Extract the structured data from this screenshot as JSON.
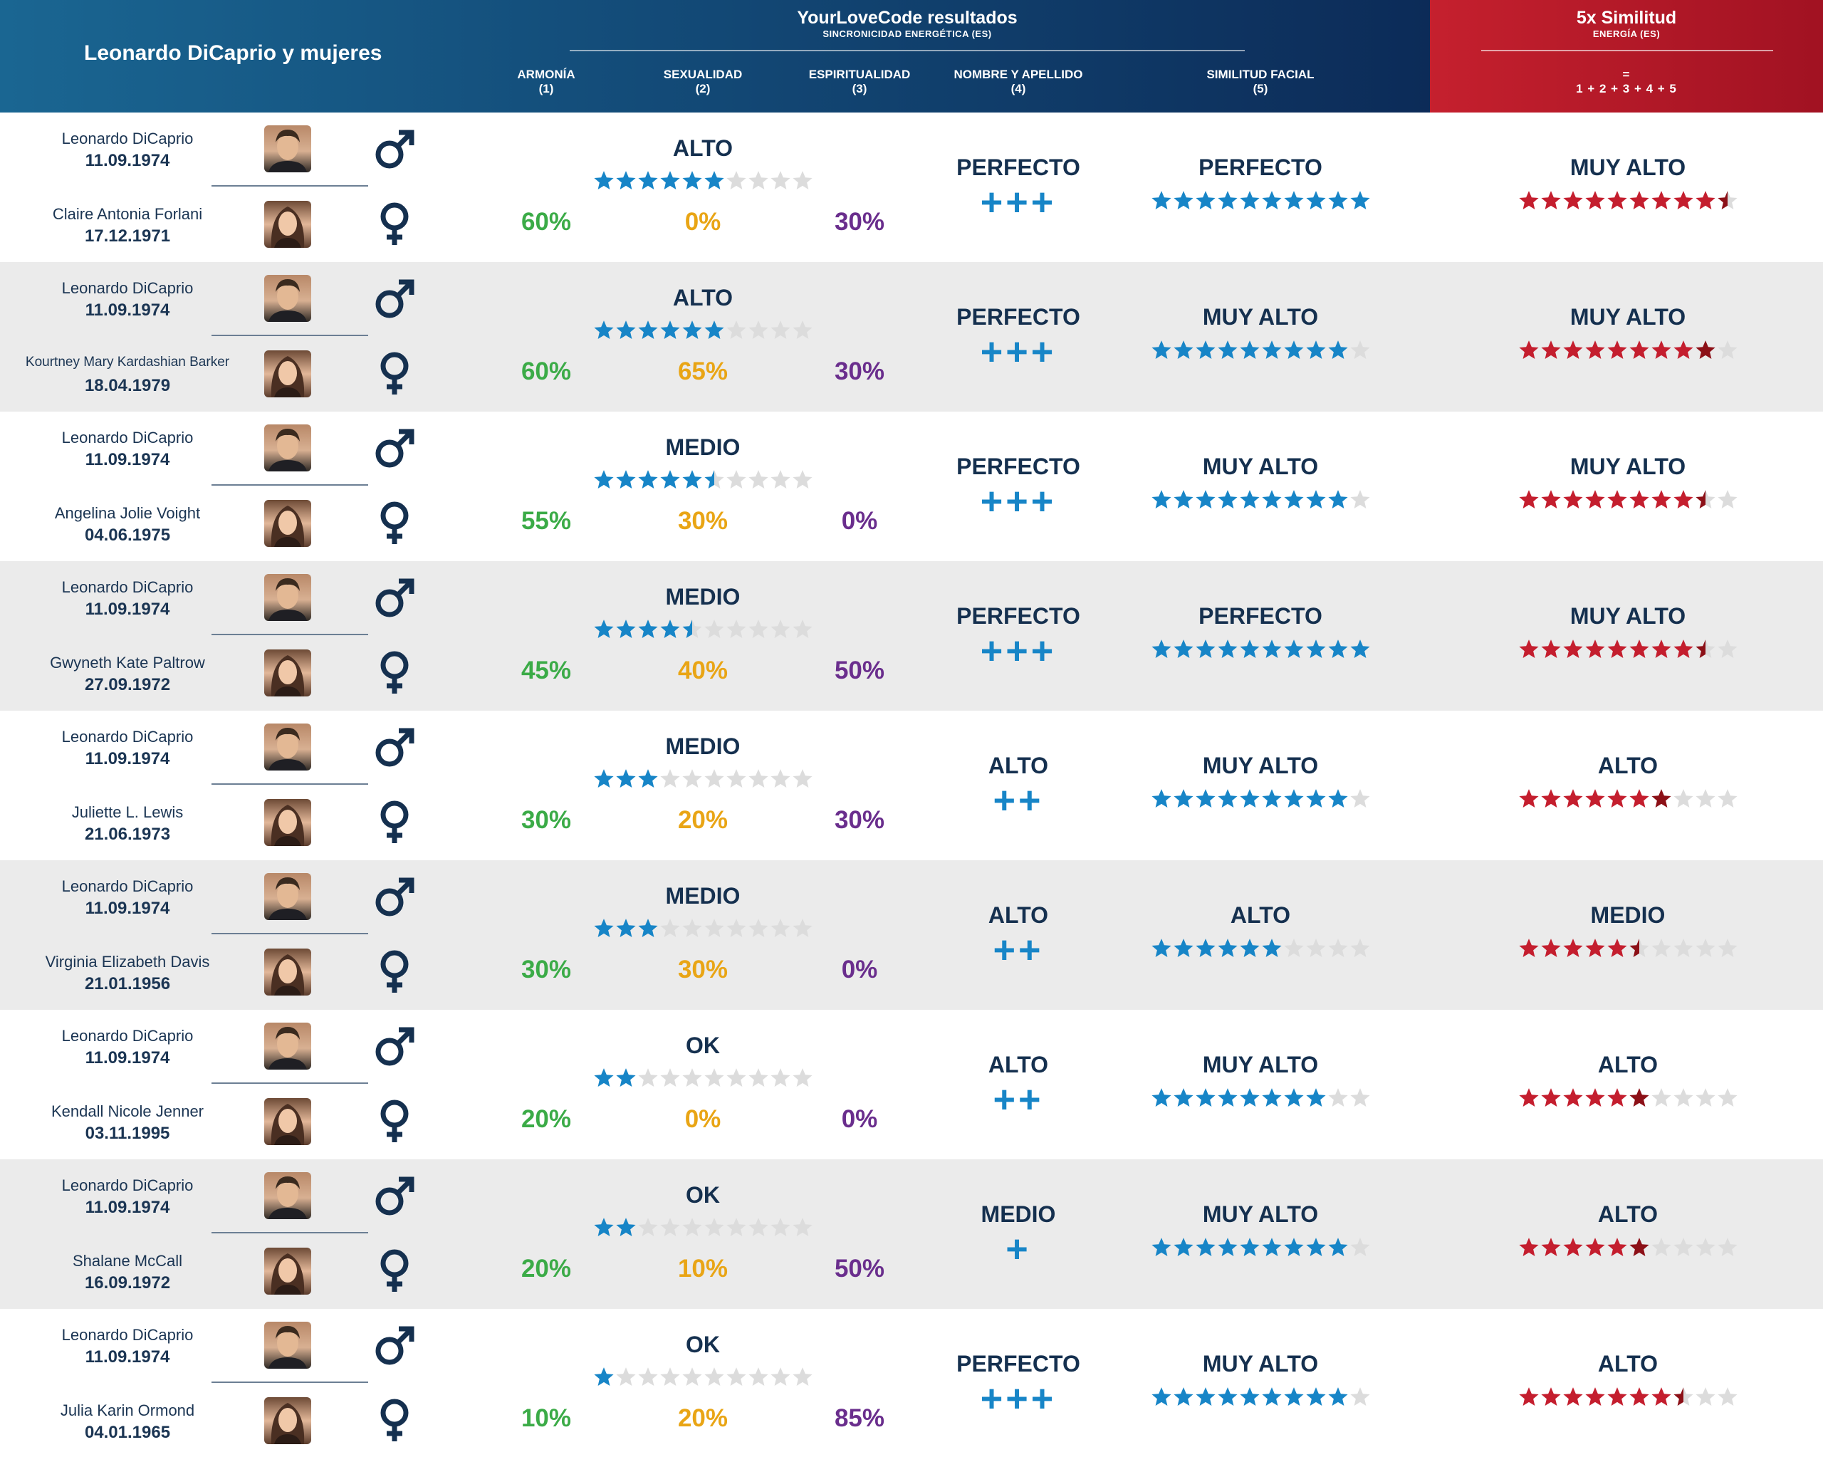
{
  "header": {
    "title": "Leonardo DiCaprio y mujeres",
    "results_title": "YourLoveCode resultados",
    "results_subtitle": "SINCRONICIDAD ENERGÉTICA (ES)",
    "columns": {
      "harmony": {
        "label": "ARMONÍA",
        "num": "(1)"
      },
      "sexuality": {
        "label": "SEXUALIDAD",
        "num": "(2)"
      },
      "spirituality": {
        "label": "ESPIRITUALIDAD",
        "num": "(3)"
      },
      "name": {
        "label": "NOMBRE Y APELLIDO",
        "num": "(4)"
      },
      "facial": {
        "label": "SIMILITUD FACIAL",
        "num": "(5)"
      }
    },
    "similarity_title": "5x Similitud",
    "similarity_subtitle": "ENERGÍA (ES)",
    "formula_eq": "=",
    "formula": "1 + 2 + 3 + 4 + 5"
  },
  "colors": {
    "harmony": "#3bab47",
    "sexuality": "#e9a515",
    "spirituality": "#6a2e8d",
    "star_blue": "#1785c7",
    "star_red": "#c41e2e",
    "star_red_dark": "#8c1017",
    "star_empty": "#dcdcdc"
  },
  "icons": {
    "male": "male-symbol-icon",
    "female": "female-symbol-icon",
    "star": "star-icon",
    "plus": "plus-icon"
  },
  "rows": [
    {
      "p1_name": "Leonardo DiCaprio",
      "p1_date": "11.09.1974",
      "p2_name": "Claire Antonia Forlani",
      "p2_date": "17.12.1971",
      "harmony": "60%",
      "sexuality": "0%",
      "spirituality": "30%",
      "sex_level": "ALTO",
      "sex_stars": 6,
      "name_level": "PERFECTO",
      "name_plus": "+++",
      "facial_level": "PERFECTO",
      "facial_stars": 10,
      "sim_level": "MUY ALTO",
      "sim_stars": 9.5
    },
    {
      "p1_name": "Leonardo DiCaprio",
      "p1_date": "11.09.1974",
      "p2_name": "Kourtney Mary Kardashian Barker",
      "p2_date": "18.04.1979",
      "harmony": "60%",
      "sexuality": "65%",
      "spirituality": "30%",
      "sex_level": "ALTO",
      "sex_stars": 6,
      "name_level": "PERFECTO",
      "name_plus": "+++",
      "facial_level": "MUY ALTO",
      "facial_stars": 9,
      "sim_level": "MUY ALTO",
      "sim_stars": 9
    },
    {
      "p1_name": "Leonardo DiCaprio",
      "p1_date": "11.09.1974",
      "p2_name": "Angelina Jolie Voight",
      "p2_date": "04.06.1975",
      "harmony": "55%",
      "sexuality": "30%",
      "spirituality": "0%",
      "sex_level": "MEDIO",
      "sex_stars": 5.5,
      "name_level": "PERFECTO",
      "name_plus": "+++",
      "facial_level": "MUY ALTO",
      "facial_stars": 9,
      "sim_level": "MUY ALTO",
      "sim_stars": 8.5
    },
    {
      "p1_name": "Leonardo DiCaprio",
      "p1_date": "11.09.1974",
      "p2_name": "Gwyneth Kate Paltrow",
      "p2_date": "27.09.1972",
      "harmony": "45%",
      "sexuality": "40%",
      "spirituality": "50%",
      "sex_level": "MEDIO",
      "sex_stars": 4.5,
      "name_level": "PERFECTO",
      "name_plus": "+++",
      "facial_level": "PERFECTO",
      "facial_stars": 10,
      "sim_level": "MUY ALTO",
      "sim_stars": 8.5
    },
    {
      "p1_name": "Leonardo DiCaprio",
      "p1_date": "11.09.1974",
      "p2_name": "Juliette L. Lewis",
      "p2_date": "21.06.1973",
      "harmony": "30%",
      "sexuality": "20%",
      "spirituality": "30%",
      "sex_level": "MEDIO",
      "sex_stars": 3,
      "name_level": "ALTO",
      "name_plus": "++",
      "facial_level": "MUY ALTO",
      "facial_stars": 9,
      "sim_level": "ALTO",
      "sim_stars": 7
    },
    {
      "p1_name": "Leonardo DiCaprio",
      "p1_date": "11.09.1974",
      "p2_name": "Virginia Elizabeth Davis",
      "p2_date": "21.01.1956",
      "harmony": "30%",
      "sexuality": "30%",
      "spirituality": "0%",
      "sex_level": "MEDIO",
      "sex_stars": 3,
      "name_level": "ALTO",
      "name_plus": "++",
      "facial_level": "ALTO",
      "facial_stars": 6,
      "sim_level": "MEDIO",
      "sim_stars": 5.5
    },
    {
      "p1_name": "Leonardo DiCaprio",
      "p1_date": "11.09.1974",
      "p2_name": "Kendall Nicole Jenner",
      "p2_date": "03.11.1995",
      "harmony": "20%",
      "sexuality": "0%",
      "spirituality": "0%",
      "sex_level": "OK",
      "sex_stars": 2,
      "name_level": "ALTO",
      "name_plus": "++",
      "facial_level": "MUY ALTO",
      "facial_stars": 8,
      "sim_level": "ALTO",
      "sim_stars": 6
    },
    {
      "p1_name": "Leonardo DiCaprio",
      "p1_date": "11.09.1974",
      "p2_name": "Shalane McCall",
      "p2_date": "16.09.1972",
      "harmony": "20%",
      "sexuality": "10%",
      "spirituality": "50%",
      "sex_level": "OK",
      "sex_stars": 2,
      "name_level": "MEDIO",
      "name_plus": "+",
      "facial_level": "MUY ALTO",
      "facial_stars": 9,
      "sim_level": "ALTO",
      "sim_stars": 6
    },
    {
      "p1_name": "Leonardo DiCaprio",
      "p1_date": "11.09.1974",
      "p2_name": "Julia Karin Ormond",
      "p2_date": "04.01.1965",
      "harmony": "10%",
      "sexuality": "20%",
      "spirituality": "85%",
      "sex_level": "OK",
      "sex_stars": 1,
      "name_level": "PERFECTO",
      "name_plus": "+++",
      "facial_level": "MUY ALTO",
      "facial_stars": 9,
      "sim_level": "ALTO",
      "sim_stars": 7.5
    }
  ]
}
